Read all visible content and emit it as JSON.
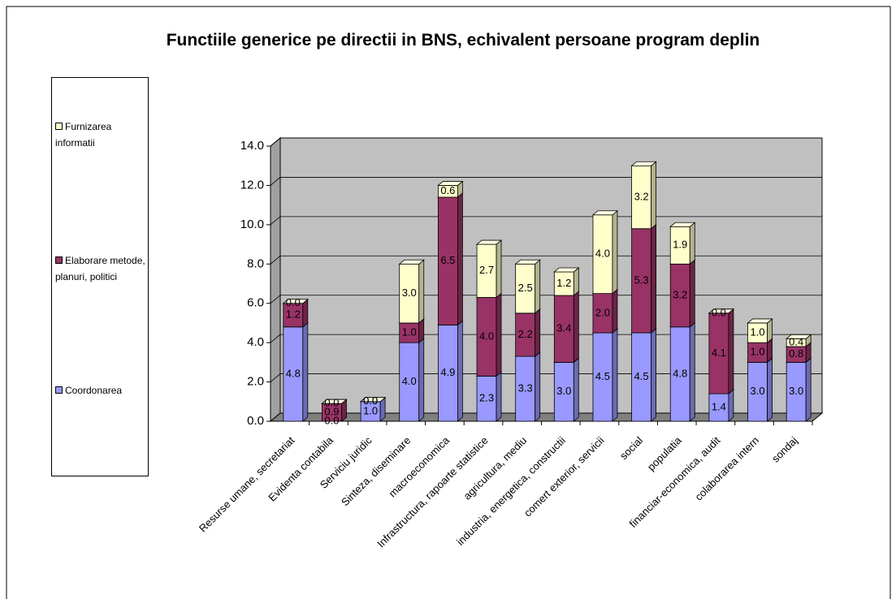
{
  "chart_data": {
    "type": "bar3d_stacked",
    "title": "Functiile generice pe directii in BNS, echivalent persoane program deplin",
    "categories": [
      "Resurse umane, secretariat",
      "Evidenta contabila",
      "Serviciu juridic",
      "Sinteza, diseminare",
      "macroeconomica",
      "Infrastructura, rapoarte statistice",
      "agricultura, mediu",
      "industria, energetica, constructii",
      "comert exterior, servicii",
      "social",
      "populatia",
      "financiar-economica, audit",
      "colaborarea intern",
      "sondaj"
    ],
    "series": [
      {
        "name": "Coordonarea",
        "color": "#9999ff",
        "values": [
          4.8,
          0.0,
          1.0,
          4.0,
          4.9,
          2.3,
          3.3,
          3.0,
          4.5,
          4.5,
          4.8,
          1.4,
          3.0,
          3.0
        ],
        "value_labels": [
          "4.8",
          "0.0",
          "1.0",
          "4.0",
          "4.9",
          "2.3",
          "3.3",
          "3.0",
          "4.5",
          "4.5",
          "4.8",
          "1.4",
          "3.0",
          "3.0"
        ]
      },
      {
        "name": "Elaborare metode, planuri, politici",
        "color": "#993366",
        "values": [
          1.2,
          0.9,
          0.0,
          1.0,
          6.5,
          4.0,
          2.2,
          3.4,
          2.0,
          5.3,
          3.2,
          4.1,
          1.0,
          0.8
        ],
        "value_labels": [
          "1.2",
          "0.9",
          "0.0",
          "1.0",
          "6.5",
          "4.0",
          "2.2",
          "3.4",
          "2.0",
          "5.3",
          "3.2",
          "4.1",
          "1.0",
          "0.8"
        ]
      },
      {
        "name": "Furnizarea informatii",
        "color": "#ffffcc",
        "values": [
          0.0,
          0.0,
          0.0,
          3.0,
          0.6,
          2.7,
          2.5,
          1.2,
          4.0,
          3.2,
          1.9,
          0.0,
          1.0,
          0.4
        ],
        "value_labels": [
          "0.0",
          "0.0",
          "0.0",
          "3.0",
          "0.6",
          "2.7",
          "2.5",
          "1.2",
          "4.0",
          "3.2",
          "1.9",
          "0.0",
          "1.0",
          "0.4"
        ]
      }
    ],
    "ylim": [
      0,
      14
    ],
    "yticks": [
      {
        "value": 0,
        "label": "0.0"
      },
      {
        "value": 2,
        "label": "2.0"
      },
      {
        "value": 4,
        "label": "4.0"
      },
      {
        "value": 6,
        "label": "6.0"
      },
      {
        "value": 8,
        "label": "8.0"
      },
      {
        "value": 10,
        "label": "10.0"
      },
      {
        "value": 12,
        "label": "12.0"
      },
      {
        "value": 14,
        "label": "14.0"
      }
    ],
    "grid": true,
    "legend": "left"
  }
}
